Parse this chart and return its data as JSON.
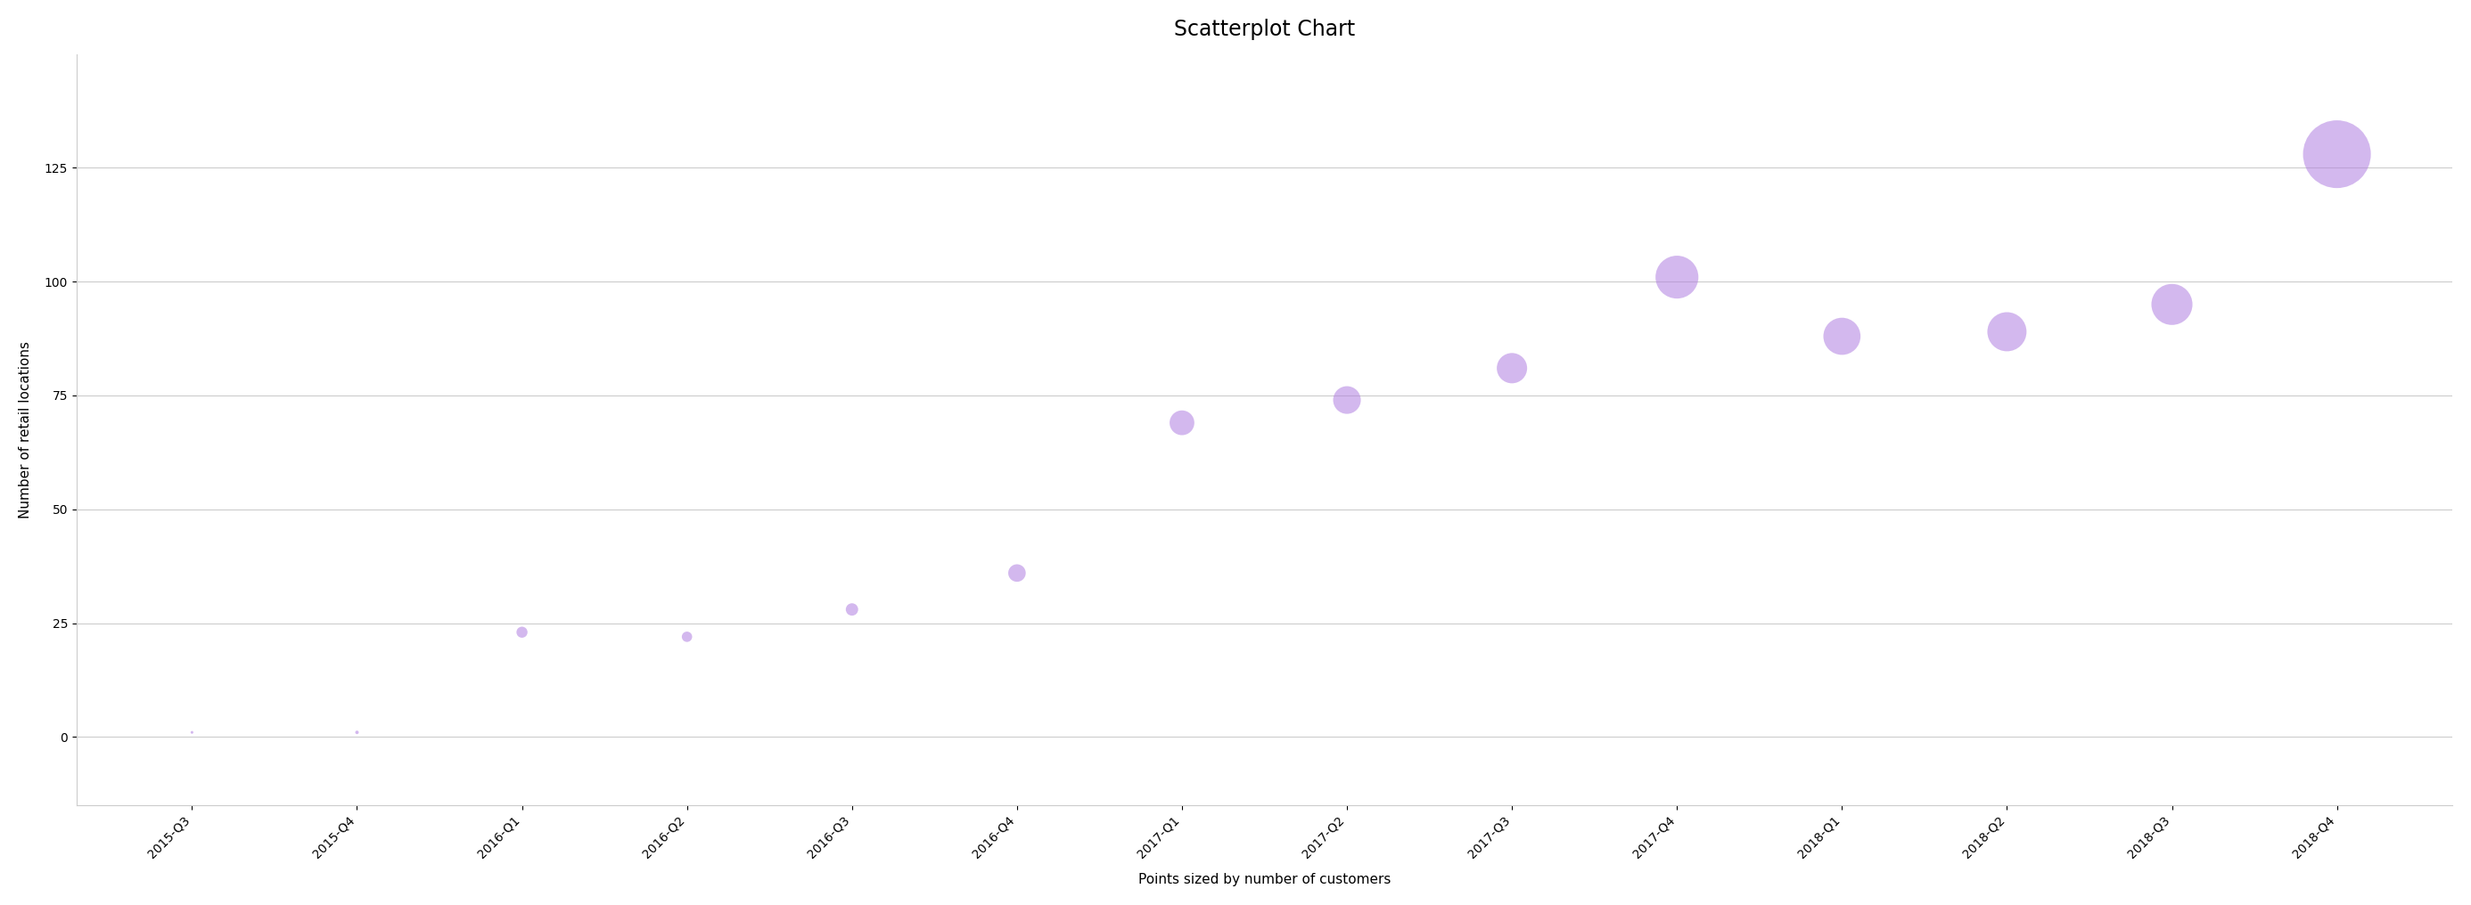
{
  "title": "Scatterplot Chart",
  "xlabel": "Points sized by number of customers",
  "ylabel": "Number of retail locations",
  "categories": [
    "2015-Q3",
    "2015-Q4",
    "2016-Q1",
    "2016-Q2",
    "2016-Q3",
    "2016-Q4",
    "2017-Q1",
    "2017-Q2",
    "2017-Q3",
    "2017-Q4",
    "2018-Q1",
    "2018-Q2",
    "2018-Q3",
    "2018-Q4"
  ],
  "y_values": [
    1,
    1,
    23,
    22,
    28,
    36,
    69,
    74,
    81,
    101,
    88,
    89,
    95,
    128
  ],
  "sizes": [
    5,
    8,
    80,
    70,
    100,
    200,
    400,
    500,
    600,
    1200,
    900,
    1000,
    1100,
    3000
  ],
  "dot_color": "#b07fe0",
  "dot_alpha": 0.55,
  "dot_edgecolor": "none",
  "background_color": "#ffffff",
  "grid_color": "#cccccc",
  "ylim": [
    -15,
    150
  ],
  "yticks": [
    0,
    25,
    50,
    75,
    100,
    125
  ],
  "title_fontsize": 17,
  "axis_label_fontsize": 11,
  "tick_fontsize": 10
}
